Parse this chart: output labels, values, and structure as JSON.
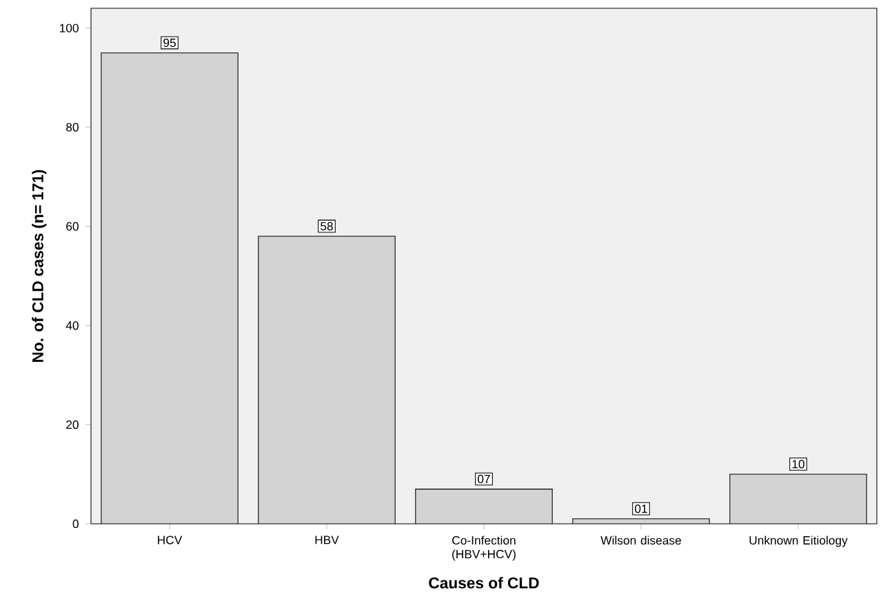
{
  "chart_data": {
    "type": "bar",
    "xlabel": "Causes of CLD",
    "ylabel": "No. of CLD cases (n= 171)",
    "categories": [
      "HCV",
      "HBV",
      "Co-Infection (HBV+HCV)",
      "Wilson disease",
      "Unknown Eitiology"
    ],
    "values": [
      95,
      58,
      7,
      1,
      10
    ],
    "value_labels": [
      "95",
      "58",
      "07",
      "01",
      "10"
    ],
    "color": "#d3d3d3",
    "ylim": [
      0,
      104
    ],
    "yticks": [
      0,
      20,
      40,
      60,
      80,
      100
    ]
  }
}
